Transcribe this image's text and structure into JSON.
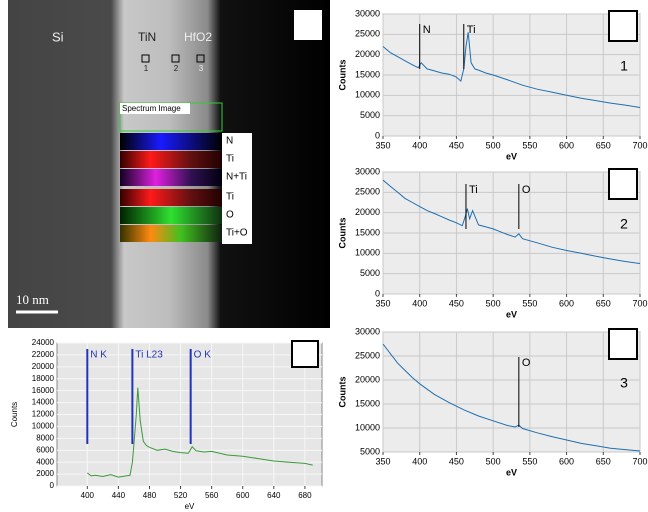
{
  "image": {
    "labels": {
      "si": "Si",
      "tin": "TiN",
      "hfo2": "HfO2"
    },
    "points": [
      "1",
      "2",
      "3"
    ],
    "spectrum_image": "Spectrum Image",
    "channels": [
      "N",
      "Ti",
      "N+Ti",
      "Ti",
      "O",
      "Ti+O"
    ],
    "scale_bar": "10 nm"
  },
  "chart_data": [
    {
      "type": "line",
      "panel_label": "1",
      "x_label": "eV",
      "y_label": "Counts",
      "color": "#1f6fb0",
      "grid": true,
      "x": [
        350,
        360,
        370,
        380,
        390,
        398,
        402,
        410,
        420,
        430,
        440,
        450,
        456,
        460,
        463,
        466,
        470,
        475,
        480,
        490,
        500,
        520,
        540,
        560,
        580,
        600,
        620,
        640,
        660,
        680,
        700
      ],
      "values": [
        22000,
        20500,
        19500,
        18500,
        17500,
        16800,
        18000,
        16500,
        16000,
        15500,
        15200,
        14500,
        13500,
        16500,
        22000,
        25500,
        18000,
        16500,
        16200,
        15500,
        15000,
        13800,
        12500,
        11500,
        10800,
        10000,
        9300,
        8700,
        8100,
        7600,
        7000
      ],
      "xlim": [
        350,
        700
      ],
      "xticks": [
        350,
        400,
        450,
        500,
        550,
        600,
        650,
        700
      ],
      "ylim": [
        0,
        30000
      ],
      "yticks": [
        0,
        5000,
        10000,
        15000,
        20000,
        25000,
        30000
      ],
      "annotations": [
        {
          "text": "N",
          "x": 400
        },
        {
          "text": "Ti",
          "x": 460
        }
      ]
    },
    {
      "type": "line",
      "panel_label": "2",
      "x_label": "eV",
      "y_label": "Counts",
      "color": "#1f6fb0",
      "grid": true,
      "x": [
        350,
        360,
        370,
        380,
        390,
        400,
        410,
        420,
        430,
        440,
        450,
        458,
        462,
        465,
        468,
        472,
        480,
        490,
        500,
        510,
        520,
        530,
        535,
        540,
        560,
        580,
        600,
        620,
        640,
        660,
        680,
        700
      ],
      "values": [
        28000,
        26500,
        25000,
        23500,
        22500,
        21500,
        20500,
        19800,
        19000,
        18200,
        17500,
        16800,
        19000,
        21000,
        18500,
        20500,
        17000,
        16500,
        16000,
        15300,
        14600,
        14000,
        14800,
        13600,
        12600,
        11500,
        10700,
        10000,
        9300,
        8600,
        8000,
        7500
      ],
      "xlim": [
        350,
        700
      ],
      "xticks": [
        350,
        400,
        450,
        500,
        550,
        600,
        650,
        700
      ],
      "ylim": [
        0,
        30000
      ],
      "yticks": [
        0,
        5000,
        10000,
        15000,
        20000,
        25000,
        30000
      ],
      "annotations": [
        {
          "text": "Ti",
          "x": 463
        },
        {
          "text": "O",
          "x": 535
        }
      ]
    },
    {
      "type": "line",
      "panel_label": "3",
      "x_label": "eV",
      "y_label": "Counts",
      "color": "#1f6fb0",
      "grid": true,
      "x": [
        350,
        360,
        370,
        380,
        390,
        400,
        420,
        440,
        460,
        480,
        500,
        520,
        530,
        535,
        540,
        560,
        580,
        600,
        620,
        640,
        660,
        680,
        700
      ],
      "values": [
        27500,
        25500,
        23500,
        22000,
        20500,
        19200,
        17000,
        15300,
        13800,
        12500,
        11500,
        10500,
        10200,
        10600,
        9900,
        9000,
        8200,
        7500,
        6800,
        6300,
        5800,
        5500,
        5200
      ],
      "xlim": [
        350,
        700
      ],
      "xticks": [
        350,
        400,
        450,
        500,
        550,
        600,
        650,
        700
      ],
      "ylim": [
        5000,
        30000
      ],
      "yticks": [
        5000,
        10000,
        15000,
        20000,
        25000,
        30000
      ],
      "annotations": [
        {
          "text": "O",
          "x": 535
        }
      ]
    },
    {
      "type": "line",
      "x_label": "eV",
      "y_label": "Counts",
      "color": "#3a9a3a",
      "grid": true,
      "x": [
        400,
        405,
        410,
        420,
        430,
        440,
        450,
        455,
        458,
        460,
        463,
        465,
        468,
        472,
        476,
        480,
        490,
        500,
        510,
        520,
        530,
        535,
        540,
        550,
        560,
        580,
        600,
        620,
        640,
        660,
        680,
        690
      ],
      "values": [
        2200,
        1700,
        1800,
        1600,
        1900,
        1500,
        1700,
        1800,
        4000,
        7000,
        12000,
        16500,
        11000,
        7500,
        6800,
        6500,
        6000,
        6200,
        5800,
        5600,
        5500,
        6600,
        5900,
        5700,
        5800,
        5200,
        5000,
        4600,
        4200,
        4000,
        3800,
        3500
      ],
      "xlim": [
        361,
        702
      ],
      "xticks": [
        400,
        440,
        480,
        520,
        560,
        600,
        640,
        680
      ],
      "ylim": [
        0,
        24000
      ],
      "yticks": [
        0,
        2000,
        4000,
        6000,
        8000,
        10000,
        12000,
        14000,
        16000,
        18000,
        20000,
        22000,
        24000
      ],
      "annotations": [
        {
          "text": "N K",
          "x": 400
        },
        {
          "text": "Ti L23",
          "x": 458
        },
        {
          "text": "O K",
          "x": 533
        }
      ]
    }
  ]
}
